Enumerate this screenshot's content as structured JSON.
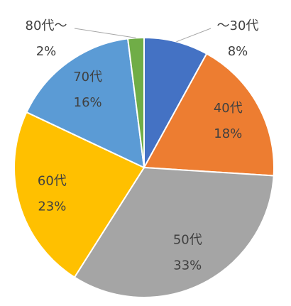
{
  "chart_data": {
    "type": "pie",
    "categories": [
      "～30代",
      "40代",
      "50代",
      "60代",
      "70代",
      "80代～"
    ],
    "values": [
      8,
      18,
      33,
      23,
      16,
      2
    ],
    "value_labels": [
      "8%",
      "18%",
      "33%",
      "23%",
      "16%",
      "2%"
    ],
    "colors": [
      "#4472c4",
      "#ed7d31",
      "#a5a5a5",
      "#ffc000",
      "#5b9bd5",
      "#70ad47"
    ]
  }
}
